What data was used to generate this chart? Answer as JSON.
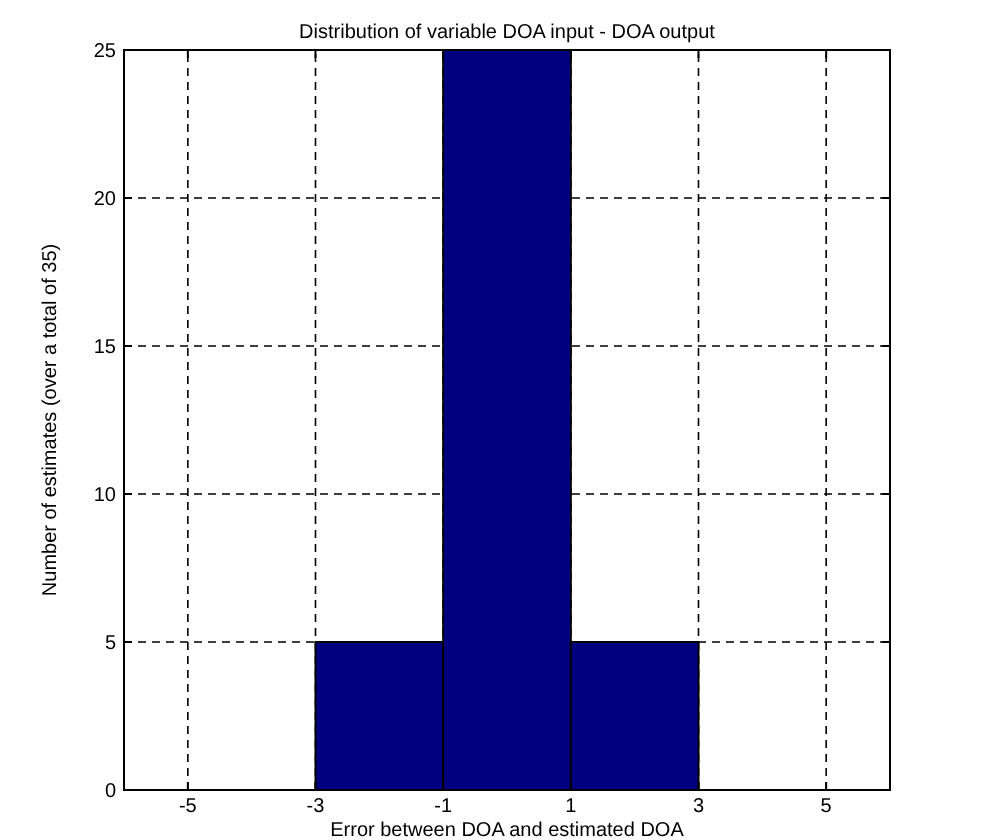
{
  "chart_data": {
    "type": "histogram",
    "title": "Distribution of variable DOA input - DOA output",
    "xlabel": "Error between DOA and estimated DOA",
    "ylabel": "Number of estimates (over a total of 35)",
    "bins": [
      -3,
      -1,
      1,
      3
    ],
    "values": [
      5,
      25,
      5
    ],
    "color": "#000080",
    "xlim": [
      -6,
      6
    ],
    "xticks": [
      -5,
      -3,
      -1,
      1,
      3,
      5
    ],
    "ylim": [
      0,
      25
    ],
    "yticks": [
      0,
      5,
      10,
      15,
      20,
      25
    ],
    "grid": true
  }
}
